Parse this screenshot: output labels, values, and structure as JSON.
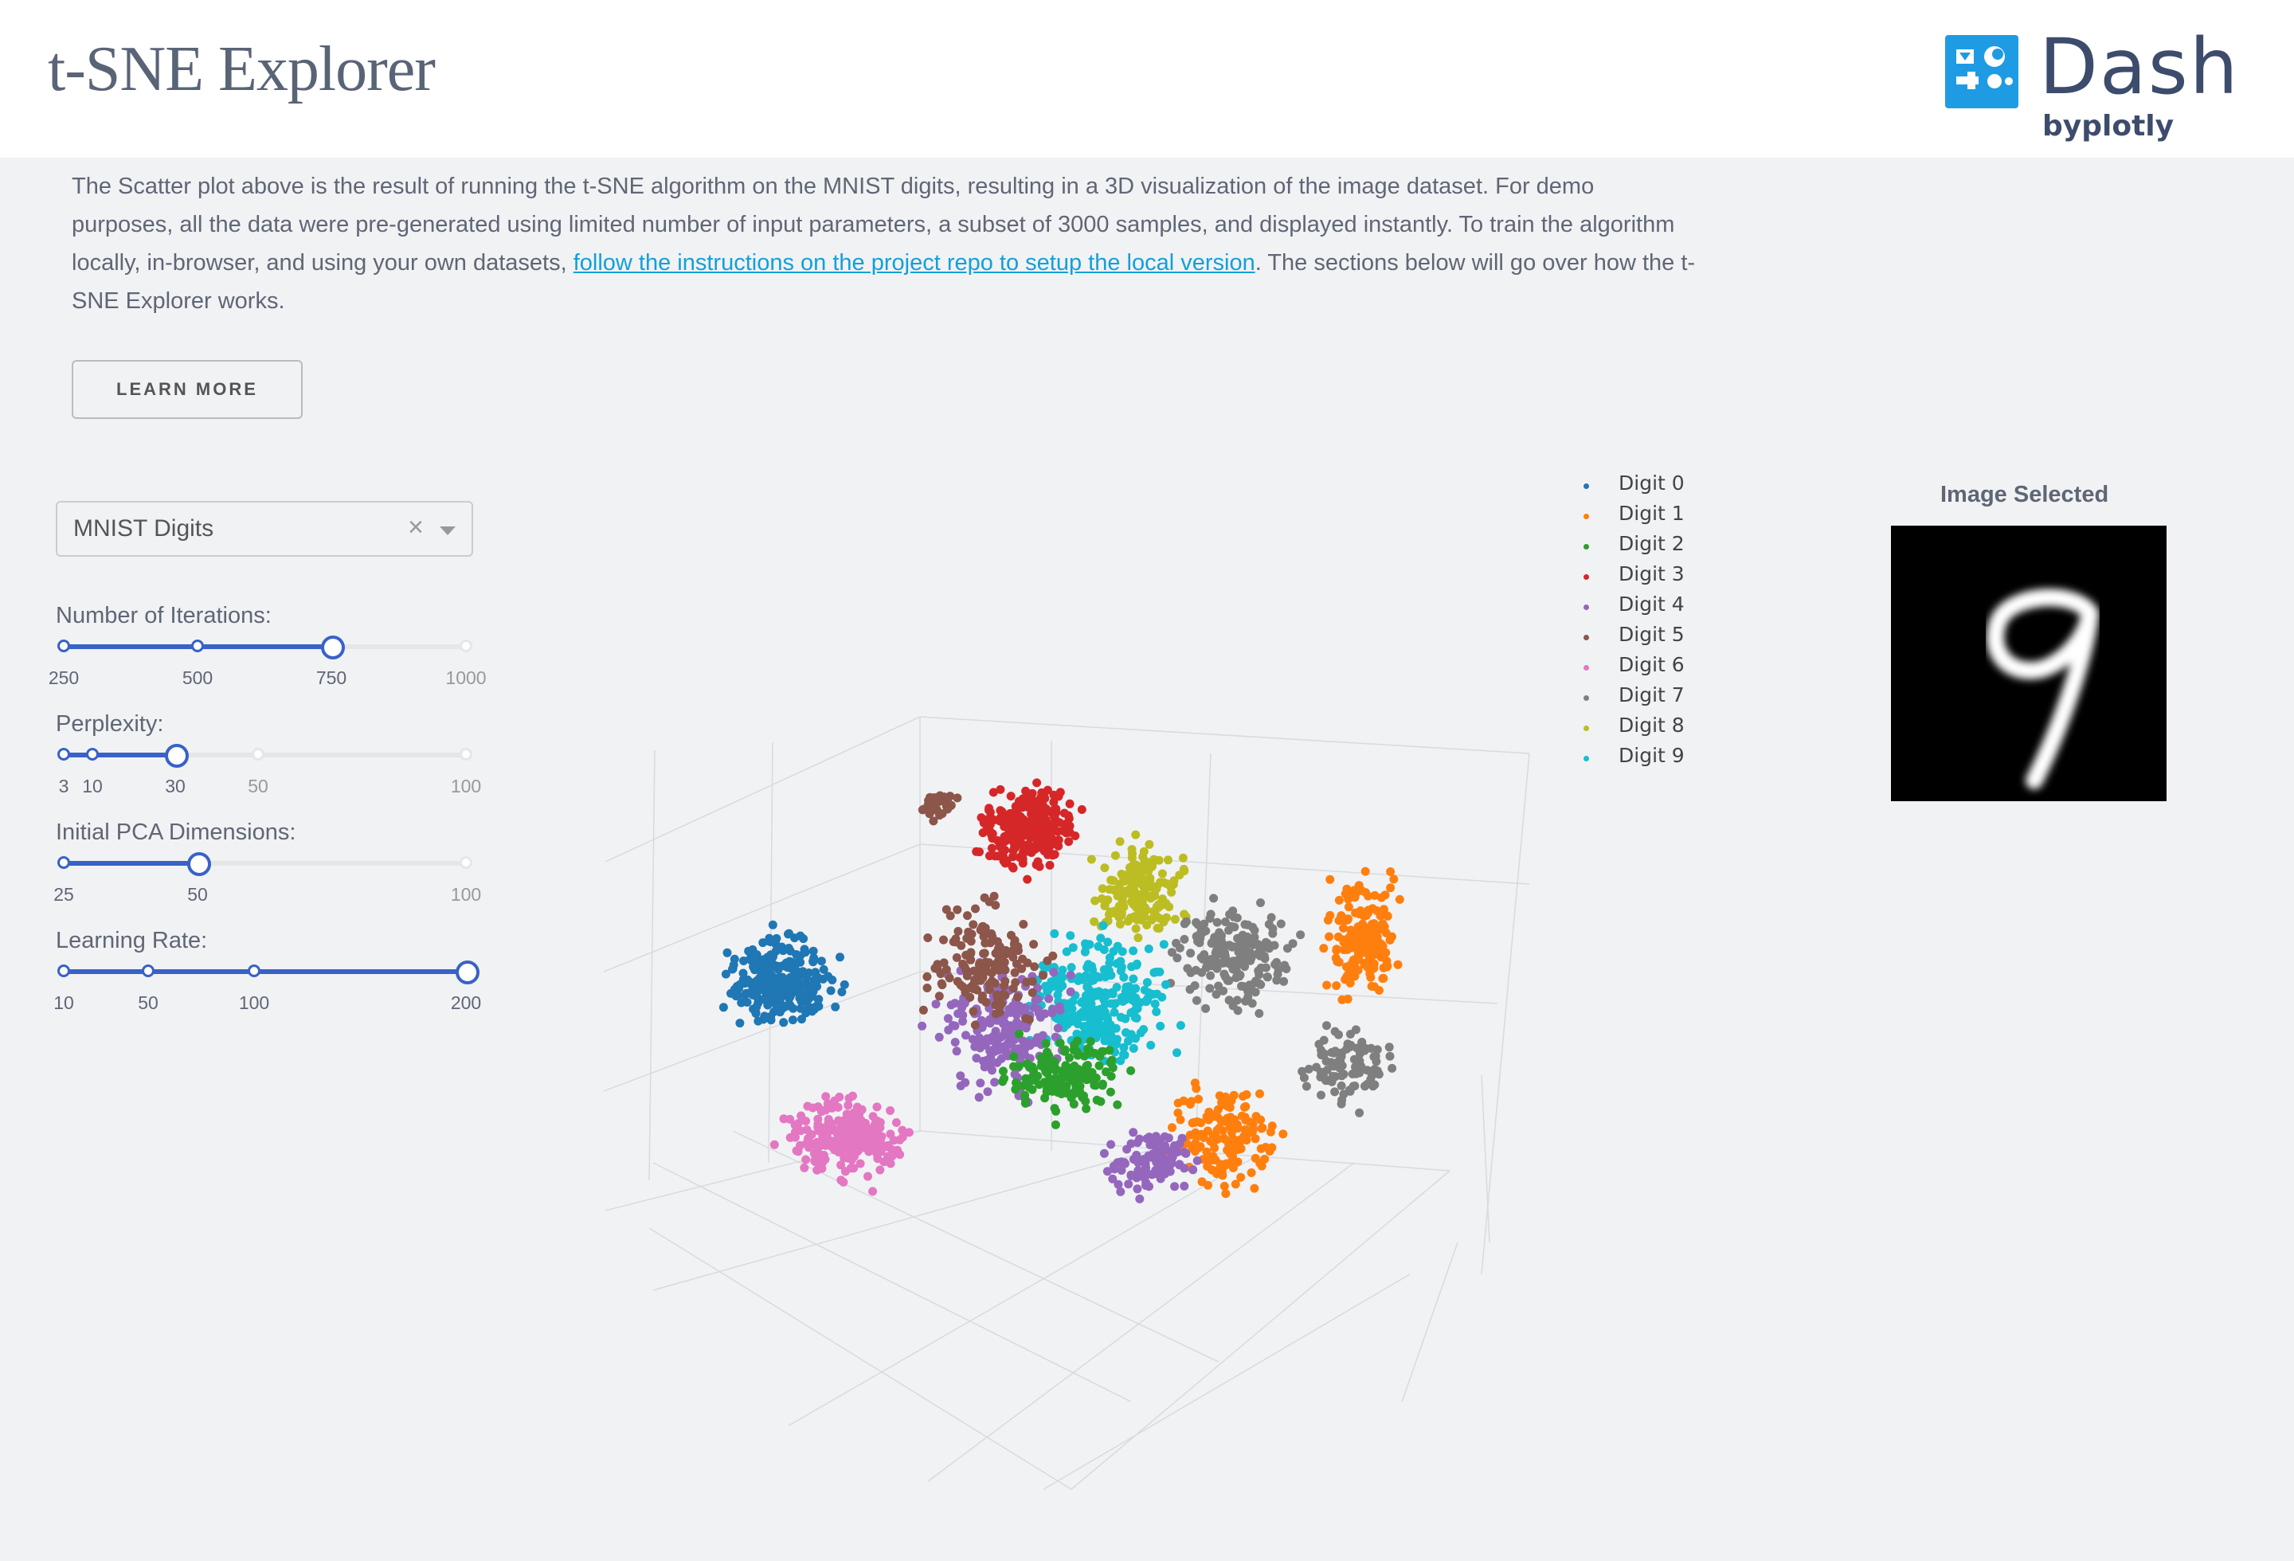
{
  "header": {
    "title": "t-SNE Explorer",
    "logo_word": "Dash",
    "logo_by": "byplotly"
  },
  "description": {
    "text_before": "The Scatter plot above is the result of running the t-SNE algorithm on the MNIST digits, resulting in a 3D visualization of the image dataset. For demo purposes, all the data were pre-generated using limited number of input parameters, a subset of 3000 samples, and displayed instantly. To train the algorithm locally, in-browser, and using your own datasets, ",
    "link_text": "follow the instructions on the project repo to setup the local version",
    "text_after": ". The sections below will go over how the t-SNE Explorer works."
  },
  "learn_more_label": "LEARN MORE",
  "dataset_dropdown": {
    "value": "MNIST Digits",
    "clear_glyph": "×"
  },
  "sliders": {
    "iterations": {
      "label": "Number of Iterations:",
      "marks": [
        "250",
        "500",
        "750",
        "1000"
      ],
      "value": "750"
    },
    "perplexity": {
      "label": "Perplexity:",
      "marks": [
        "3",
        "10",
        "30",
        "50",
        "100"
      ],
      "value": "30"
    },
    "pca": {
      "label": "Initial PCA Dimensions:",
      "marks": [
        "25",
        "50",
        "100"
      ],
      "value": "50"
    },
    "learning_rate": {
      "label": "Learning Rate:",
      "marks": [
        "10",
        "50",
        "100",
        "200"
      ],
      "value": "200"
    }
  },
  "image_panel": {
    "title": "Image Selected"
  },
  "chart_data": {
    "type": "scatter",
    "subtype": "scatter3d",
    "title": "",
    "series": [
      {
        "name": "Digit 0",
        "color": "#1f77b4"
      },
      {
        "name": "Digit 1",
        "color": "#ff7f0e"
      },
      {
        "name": "Digit 2",
        "color": "#2ca02c"
      },
      {
        "name": "Digit 3",
        "color": "#d62728"
      },
      {
        "name": "Digit 4",
        "color": "#9467bd"
      },
      {
        "name": "Digit 5",
        "color": "#8c564b"
      },
      {
        "name": "Digit 6",
        "color": "#e377c2"
      },
      {
        "name": "Digit 7",
        "color": "#7f7f7f"
      },
      {
        "name": "Digit 8",
        "color": "#bcbd22"
      },
      {
        "name": "Digit 9",
        "color": "#17becf"
      }
    ],
    "grid": true,
    "legend_position": "top-right"
  }
}
